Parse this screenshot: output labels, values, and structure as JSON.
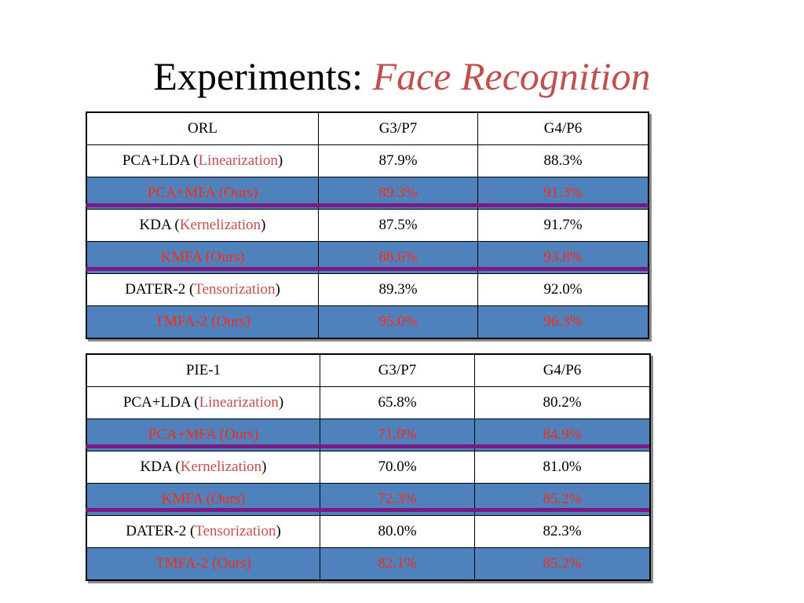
{
  "slide": {
    "title_main": "Experiments:",
    "title_accent": "Face Recognition"
  },
  "tables": [
    {
      "header": [
        "ORL",
        "G3/P7",
        "G4/P6"
      ],
      "rows": [
        {
          "method": "PCA+LDA (",
          "technique": "Linearization",
          "close": ")",
          "v1": "87.9%",
          "v2": "88.3%"
        },
        {
          "method": "PCA+MFA (Ours)",
          "v1": "89.3%",
          "v2": "91.3%"
        },
        {
          "method": "KDA (",
          "technique": "Kernelization",
          "close": ")",
          "v1": "87.5%",
          "v2": "91.7%"
        },
        {
          "method": "KMFA (Ours)",
          "v1": "88.6%",
          "v2": "93.8%"
        },
        {
          "method": "DATER-2 (",
          "technique": "Tensorization",
          "close": ")",
          "v1": "89.3%",
          "v2": "92.0%"
        },
        {
          "method": "TMFA-2 (Ours)",
          "v1": "95.0%",
          "v2": "96.3%"
        }
      ]
    },
    {
      "header": [
        "PIE-1",
        "G3/P7",
        "G4/P6"
      ],
      "rows": [
        {
          "method": "PCA+LDA (",
          "technique": "Linearization",
          "close": ")",
          "v1": "65.8%",
          "v2": "80.2%"
        },
        {
          "method": "PCA+MFA (Ours)",
          "v1": "71.0%",
          "v2": "84.9%"
        },
        {
          "method": "KDA (",
          "technique": "Kernelization",
          "close": ")",
          "v1": "70.0%",
          "v2": "81.0%"
        },
        {
          "method": "KMFA (Ours)",
          "v1": "72.3%",
          "v2": "85.2%"
        },
        {
          "method": "DATER-2 (",
          "technique": "Tensorization",
          "close": ")",
          "v1": "80.0%",
          "v2": "82.3%"
        },
        {
          "method": "TMFA-2 (Ours)",
          "v1": "82.1%",
          "v2": "85.2%"
        }
      ]
    }
  ],
  "colors": {
    "accent_red": "#c0504d",
    "ours_row_bg": "#4f81bd",
    "ours_row_text": "#ff2a10",
    "separator_purple": "#7a1a83"
  }
}
